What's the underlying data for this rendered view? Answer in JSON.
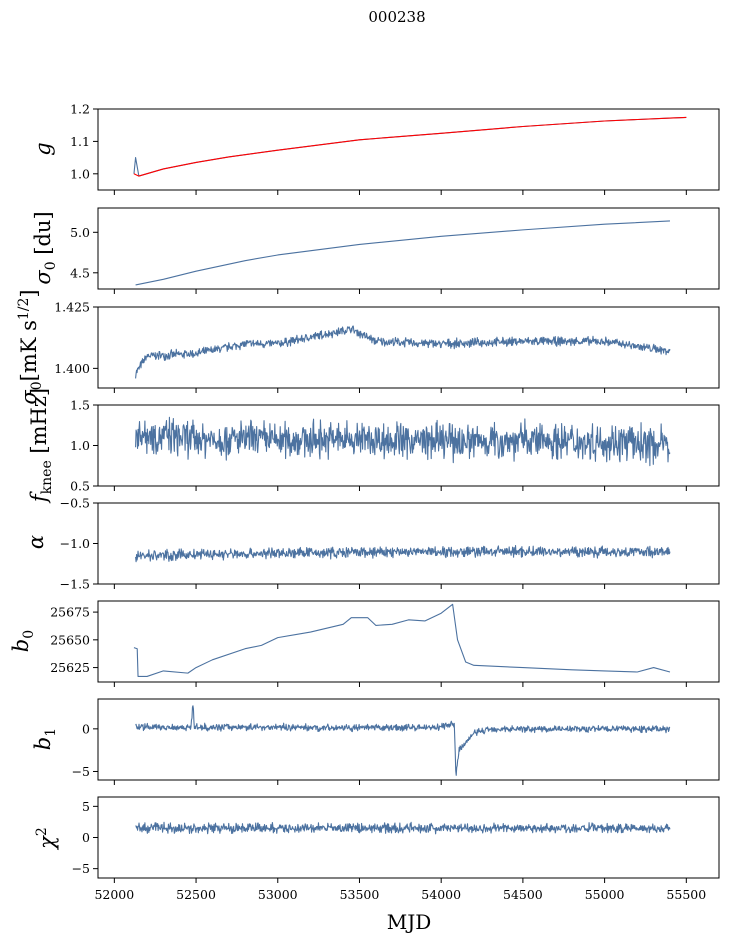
{
  "figure": {
    "title": "000238",
    "xlabel": "MJD"
  },
  "colors": {
    "series": "#4c72a0",
    "fit": "#ff0000",
    "axes": "#000000",
    "background": "#ffffff"
  },
  "chart_data": [
    {
      "type": "line",
      "panel": "g",
      "ylabel": "g",
      "xlim": [
        51900,
        55700
      ],
      "ylim": [
        0.95,
        1.2
      ],
      "yticks": [
        1.0,
        1.1,
        1.2
      ],
      "ytick_labels": [
        "1.0",
        "1.1",
        "1.2"
      ],
      "series": [
        {
          "name": "g",
          "color": "#4c72a0",
          "points": [
            [
              52120,
              1.0
            ],
            [
              52130,
              1.05
            ],
            [
              52150,
              0.993
            ],
            [
              52300,
              1.015
            ],
            [
              52500,
              1.035
            ],
            [
              52700,
              1.052
            ],
            [
              53000,
              1.073
            ],
            [
              53500,
              1.105
            ],
            [
              54000,
              1.125
            ],
            [
              54500,
              1.146
            ],
            [
              55000,
              1.163
            ],
            [
              55400,
              1.172
            ],
            [
              55500,
              1.174
            ]
          ]
        },
        {
          "name": "fit",
          "color": "#ff0000",
          "points": [
            [
              52120,
              1.0
            ],
            [
              52150,
              0.993
            ],
            [
              52300,
              1.015
            ],
            [
              52500,
              1.035
            ],
            [
              52700,
              1.052
            ],
            [
              53000,
              1.073
            ],
            [
              53500,
              1.105
            ],
            [
              54000,
              1.125
            ],
            [
              54500,
              1.146
            ],
            [
              55000,
              1.163
            ],
            [
              55400,
              1.172
            ],
            [
              55500,
              1.174
            ]
          ]
        }
      ]
    },
    {
      "type": "line",
      "panel": "sigma0_du",
      "ylabel": "σ0 [du]",
      "xlim": [
        51900,
        55700
      ],
      "ylim": [
        4.3,
        5.3
      ],
      "yticks": [
        4.5,
        5.0
      ],
      "ytick_labels": [
        "4.5",
        "5.0"
      ],
      "series": [
        {
          "name": "sigma0_du",
          "color": "#4c72a0",
          "points": [
            [
              52130,
              4.35
            ],
            [
              52300,
              4.42
            ],
            [
              52500,
              4.52
            ],
            [
              52800,
              4.65
            ],
            [
              53000,
              4.72
            ],
            [
              53500,
              4.85
            ],
            [
              54000,
              4.95
            ],
            [
              54500,
              5.03
            ],
            [
              55000,
              5.1
            ],
            [
              55400,
              5.14
            ]
          ]
        }
      ]
    },
    {
      "type": "line",
      "panel": "sigma0_mK",
      "ylabel": "σ0[mK s^1/2]",
      "xlim": [
        51900,
        55700
      ],
      "ylim": [
        1.392,
        1.425
      ],
      "yticks": [
        1.4,
        1.425
      ],
      "ytick_labels": [
        "1.400",
        "1.425"
      ],
      "noise": 0.0016,
      "series": [
        {
          "name": "sigma0_mK",
          "color": "#4c72a0",
          "points": [
            [
              52130,
              1.398
            ],
            [
              52200,
              1.405
            ],
            [
              52500,
              1.406
            ],
            [
              52800,
              1.41
            ],
            [
              53000,
              1.41
            ],
            [
              53300,
              1.414
            ],
            [
              53450,
              1.416
            ],
            [
              53600,
              1.411
            ],
            [
              54000,
              1.41
            ],
            [
              54500,
              1.411
            ],
            [
              55000,
              1.411
            ],
            [
              55400,
              1.407
            ]
          ]
        }
      ]
    },
    {
      "type": "line",
      "panel": "fknee",
      "ylabel": "fknee [mHz]",
      "xlim": [
        51900,
        55700
      ],
      "ylim": [
        0.5,
        1.5
      ],
      "yticks": [
        0.5,
        1.0,
        1.5
      ],
      "ytick_labels": [
        "0.5",
        "1.0",
        "1.5"
      ],
      "noise": 0.2,
      "series": [
        {
          "name": "fknee",
          "color": "#4c72a0",
          "points": [
            [
              52130,
              1.15
            ],
            [
              52500,
              1.08
            ],
            [
              53000,
              1.07
            ],
            [
              53500,
              1.08
            ],
            [
              54000,
              1.05
            ],
            [
              54500,
              1.07
            ],
            [
              55000,
              1.05
            ],
            [
              55400,
              1.0
            ]
          ]
        }
      ]
    },
    {
      "type": "line",
      "panel": "alpha",
      "ylabel": "α",
      "xlim": [
        51900,
        55700
      ],
      "ylim": [
        -1.5,
        -0.5
      ],
      "yticks": [
        -1.5,
        -1.0,
        -0.5
      ],
      "ytick_labels": [
        "−1.5",
        "−1.0",
        "−0.5"
      ],
      "noise": 0.06,
      "series": [
        {
          "name": "alpha",
          "color": "#4c72a0",
          "points": [
            [
              52130,
              -1.15
            ],
            [
              53000,
              -1.12
            ],
            [
              54000,
              -1.1
            ],
            [
              55000,
              -1.1
            ],
            [
              55400,
              -1.1
            ]
          ]
        }
      ]
    },
    {
      "type": "line",
      "panel": "b0",
      "ylabel": "b0",
      "xlim": [
        51900,
        55700
      ],
      "ylim": [
        25612,
        25685
      ],
      "yticks": [
        25625,
        25650,
        25675
      ],
      "ytick_labels": [
        "25625",
        "25650",
        "25675"
      ],
      "series": [
        {
          "name": "b0",
          "color": "#4c72a0",
          "points": [
            [
              52120,
              25643
            ],
            [
              52140,
              25642
            ],
            [
              52145,
              25617
            ],
            [
              52200,
              25617
            ],
            [
              52300,
              25622
            ],
            [
              52450,
              25620
            ],
            [
              52500,
              25625
            ],
            [
              52600,
              25632
            ],
            [
              52800,
              25642
            ],
            [
              52900,
              25645
            ],
            [
              53000,
              25652
            ],
            [
              53200,
              25657
            ],
            [
              53400,
              25664
            ],
            [
              53450,
              25670
            ],
            [
              53550,
              25670
            ],
            [
              53600,
              25663
            ],
            [
              53700,
              25664
            ],
            [
              53800,
              25668
            ],
            [
              53900,
              25667
            ],
            [
              54000,
              25674
            ],
            [
              54070,
              25682
            ],
            [
              54100,
              25650
            ],
            [
              54150,
              25630
            ],
            [
              54200,
              25627
            ],
            [
              54500,
              25625
            ],
            [
              54800,
              25623
            ],
            [
              55000,
              25622
            ],
            [
              55200,
              25621
            ],
            [
              55300,
              25625
            ],
            [
              55400,
              25621
            ]
          ]
        }
      ]
    },
    {
      "type": "line",
      "panel": "b1",
      "ylabel": "b1",
      "xlim": [
        51900,
        55700
      ],
      "ylim": [
        -6,
        3.5
      ],
      "yticks": [
        -5,
        0
      ],
      "ytick_labels": [
        "−5",
        "0"
      ],
      "noise": 0.35,
      "series": [
        {
          "name": "b1",
          "color": "#4c72a0",
          "points": [
            [
              52130,
              0.2
            ],
            [
              52470,
              0.2
            ],
            [
              52480,
              3.0
            ],
            [
              52490,
              0.2
            ],
            [
              53000,
              0.2
            ],
            [
              53500,
              0.1
            ],
            [
              54000,
              0.2
            ],
            [
              54060,
              0.5
            ],
            [
              54080,
              0.5
            ],
            [
              54090,
              -5.5
            ],
            [
              54110,
              -2.5
            ],
            [
              54200,
              -0.5
            ],
            [
              54300,
              0.0
            ],
            [
              55000,
              0.0
            ],
            [
              55400,
              0.0
            ]
          ]
        }
      ]
    },
    {
      "type": "line",
      "panel": "chi2",
      "ylabel": "χ2",
      "xlim": [
        51900,
        55700
      ],
      "ylim": [
        -6.5,
        6.5
      ],
      "yticks": [
        -5,
        0,
        5
      ],
      "ytick_labels": [
        "−5",
        "0",
        "5"
      ],
      "noise": 0.7,
      "series": [
        {
          "name": "chi2",
          "color": "#4c72a0",
          "points": [
            [
              52130,
              1.5
            ],
            [
              53000,
              1.5
            ],
            [
              54000,
              1.5
            ],
            [
              55000,
              1.5
            ],
            [
              55400,
              1.5
            ]
          ]
        }
      ]
    }
  ],
  "xaxis": {
    "ticks": [
      52000,
      52500,
      53000,
      53500,
      54000,
      54500,
      55000,
      55500
    ],
    "tick_labels": [
      "52000",
      "52500",
      "53000",
      "53500",
      "54000",
      "54500",
      "55000",
      "55500"
    ]
  }
}
